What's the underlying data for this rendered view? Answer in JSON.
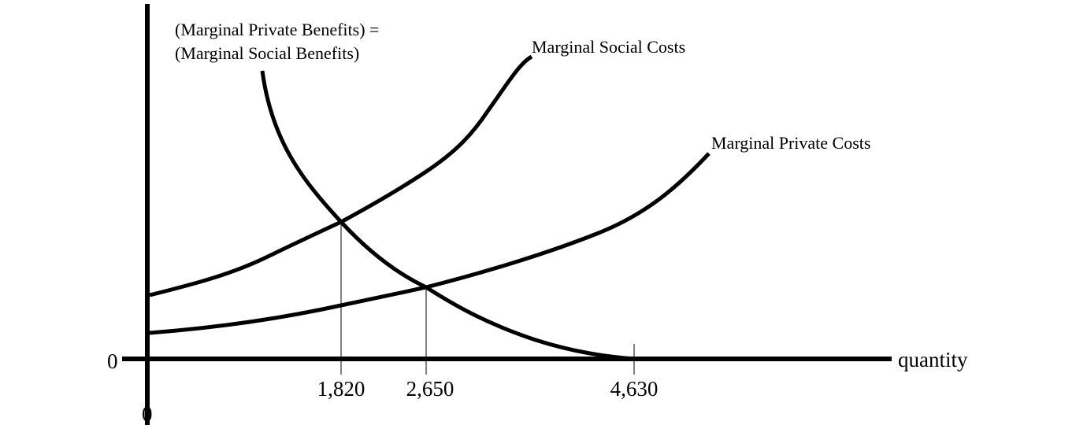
{
  "labels": {
    "msb_line1": "(Marginal Private Benefits) =",
    "msb_line2": "(Marginal Social Benefits)",
    "msc": "Marginal Social Costs",
    "mpc": "Marginal Private Costs",
    "x_axis": "quantity",
    "y_origin": "0",
    "x_origin": "0"
  },
  "x_ticks": [
    "1,820",
    "2,650",
    "4,630"
  ],
  "colors": {
    "ink": "#000000",
    "background": "#ffffff"
  }
}
